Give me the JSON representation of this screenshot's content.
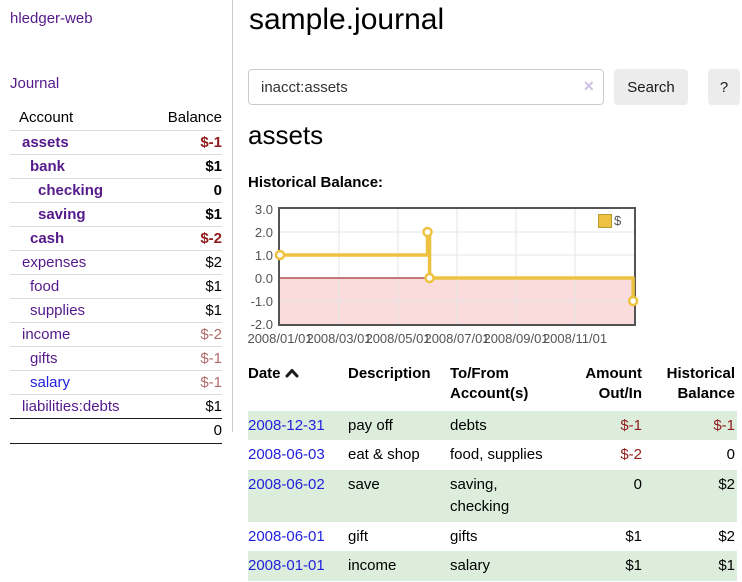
{
  "app": {
    "brand": "hledger-web"
  },
  "colors": {
    "link_purple": "#551A8B",
    "link_blue": "#2222dd",
    "negative_strong": "#8f1b1b",
    "negative_soft": "#b06a6a",
    "row_green": "#dceddc",
    "series_yellow": "#EDC240"
  },
  "sidebar": {
    "nav": {
      "journal": "Journal"
    },
    "headers": {
      "account": "Account",
      "balance": "Balance"
    },
    "accounts": [
      {
        "name": "assets",
        "balance": "$-1"
      },
      {
        "name": "bank",
        "balance": "$1"
      },
      {
        "name": "checking",
        "balance": "0"
      },
      {
        "name": "saving",
        "balance": "$1"
      },
      {
        "name": "cash",
        "balance": "$-2"
      },
      {
        "name": "expenses",
        "balance": "$2"
      },
      {
        "name": "food",
        "balance": "$1"
      },
      {
        "name": "supplies",
        "balance": "$1"
      },
      {
        "name": "income",
        "balance": "$-2"
      },
      {
        "name": "gifts",
        "balance": "$-1"
      },
      {
        "name": "salary",
        "balance": "$-1"
      },
      {
        "name": "liabilities:debts",
        "balance": "$1"
      }
    ],
    "total": "0"
  },
  "main": {
    "title": "sample.journal",
    "search": {
      "value": "inacct:assets",
      "clear_icon": "×",
      "button": "Search",
      "help_button": "?"
    },
    "account_heading": "assets",
    "chart_label": "Historical Balance:"
  },
  "chart_data": {
    "type": "line",
    "title": "Historical Balance",
    "legend": [
      {
        "label": "$",
        "color": "#EDC240"
      }
    ],
    "x_ticks": [
      "2008/01/01",
      "2008/03/01",
      "2008/05/01",
      "2008/07/01",
      "2008/09/01",
      "2008/11/01"
    ],
    "x_tick_months": [
      0,
      2,
      4,
      6,
      8,
      10
    ],
    "x_range_months": [
      0,
      12
    ],
    "y_ticks": [
      3.0,
      2.0,
      1.0,
      0.0,
      -1.0,
      -2.0
    ],
    "ylim": [
      -2,
      3
    ],
    "grid": true,
    "legend_position": "top-right",
    "step": true,
    "series": [
      {
        "name": "$",
        "color": "#EDC240",
        "points": [
          {
            "date": "2008-01-01",
            "month": 0,
            "value": 1
          },
          {
            "date": "2008-06-01",
            "month": 5.0,
            "value": 2
          },
          {
            "date": "2008-06-03",
            "month": 5.07,
            "value": 0
          },
          {
            "date": "2008-12-31",
            "month": 11.97,
            "value": -1
          }
        ]
      }
    ],
    "negative_region_color": "#fbdcdc",
    "zero_line_color": "#8b0000",
    "grid_color": "#e6e6e6",
    "border_color": "#545454"
  },
  "register": {
    "headers": {
      "date": "Date",
      "description": "Description",
      "account": "To/From Account(s)",
      "amount": "Amount Out/In",
      "balance": "Historical Balance"
    },
    "rows": [
      {
        "date": "2008-12-31",
        "description": "pay off",
        "accounts": "debts",
        "amount": "$-1",
        "balance": "$-1"
      },
      {
        "date": "2008-06-03",
        "description": "eat & shop",
        "accounts": "food, supplies",
        "amount": "$-2",
        "balance": "0"
      },
      {
        "date": "2008-06-02",
        "description": "save",
        "accounts": "saving, checking",
        "amount": "0",
        "balance": "$2"
      },
      {
        "date": "2008-06-01",
        "description": "gift",
        "accounts": "gifts",
        "amount": "$1",
        "balance": "$2"
      },
      {
        "date": "2008-01-01",
        "description": "income",
        "accounts": "salary",
        "amount": "$1",
        "balance": "$1"
      }
    ]
  }
}
